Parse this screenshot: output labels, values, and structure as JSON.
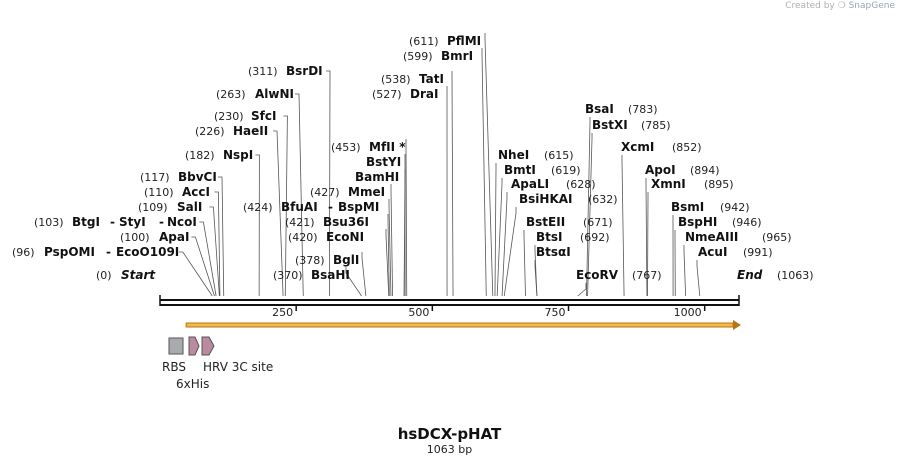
{
  "credit": {
    "prefix": "Created by",
    "brand": "SnapGene"
  },
  "plasmid": {
    "name": "hsDCX-pHAT",
    "length_label": "1063 bp",
    "length": 1063
  },
  "start_label": {
    "pos": "(0)",
    "name": "Start"
  },
  "end_label": {
    "pos": "(1063)",
    "name": "End"
  },
  "ruler": {
    "ticks": [
      250,
      500,
      750,
      1000
    ],
    "labels": [
      "250",
      "500",
      "750",
      "1000"
    ]
  },
  "features": [
    {
      "name": "RBS",
      "type": "box"
    },
    {
      "name": "6xHis",
      "type": "arrow"
    },
    {
      "name": "HRV 3C site",
      "type": "arrow"
    }
  ],
  "orf_arrow": {
    "start": 48,
    "end": 1063
  },
  "sites_left": [
    {
      "pos": "(96)",
      "name": "PspOMI",
      "pos2": null,
      "name2": "EcoO109I",
      "loc": 96
    },
    {
      "pos": "(100)",
      "name": "ApaI",
      "pos2": null,
      "name2": null,
      "loc": 100
    },
    {
      "pos": "(103)",
      "name": "BtgI",
      "pos2": null,
      "name2": "StyI",
      "name3": "NcoI",
      "loc": 103
    },
    {
      "pos": "(109)",
      "name": "SalI",
      "pos2": null,
      "name2": null,
      "loc": 109
    },
    {
      "pos": "(110)",
      "name": "AccI",
      "pos2": null,
      "name2": null,
      "loc": 110
    },
    {
      "pos": "(117)",
      "name": "BbvCI",
      "pos2": null,
      "name2": null,
      "loc": 117
    },
    {
      "pos": "(182)",
      "name": "NspI",
      "pos2": null,
      "name2": null,
      "loc": 182
    },
    {
      "pos": "(226)",
      "name": "HaeII",
      "pos2": null,
      "name2": null,
      "loc": 226
    },
    {
      "pos": "(230)",
      "name": "SfcI",
      "pos2": null,
      "name2": null,
      "loc": 230
    },
    {
      "pos": "(263)",
      "name": "AlwNI",
      "pos2": null,
      "name2": null,
      "loc": 263
    },
    {
      "pos": "(311)",
      "name": "BsrDI",
      "pos2": null,
      "name2": null,
      "loc": 311
    }
  ],
  "sites_mid": [
    {
      "pos": "(370)",
      "name": "BsaHI",
      "loc": 370
    },
    {
      "pos": "(378)",
      "name": "BglI",
      "loc": 378
    },
    {
      "pos": "(420)",
      "name": "EcoNI",
      "loc": 420
    },
    {
      "pos": "(421)",
      "name": "Bsu36I",
      "loc": 421
    },
    {
      "pos": "(424)",
      "name": "BfuAI",
      "name2": "BspMI",
      "loc": 424
    },
    {
      "pos": "(427)",
      "name": "MmeI",
      "loc": 427
    },
    {
      "pos": "",
      "name": "BamHI",
      "loc": 448
    },
    {
      "pos": "",
      "name": "BstYI",
      "loc": 450
    },
    {
      "pos": "(453)",
      "name": "MfII *",
      "loc": 453
    },
    {
      "pos": "(527)",
      "name": "DraI",
      "loc": 527
    },
    {
      "pos": "(538)",
      "name": "TatI",
      "loc": 538
    },
    {
      "pos": "(599)",
      "name": "BmrI",
      "loc": 599
    },
    {
      "pos": "(611)",
      "name": "PflMI",
      "loc": 611
    }
  ],
  "sites_right": [
    {
      "pos": "(615)",
      "name": "NheI",
      "loc": 615
    },
    {
      "pos": "(619)",
      "name": "BmtI",
      "loc": 619
    },
    {
      "pos": "(628)",
      "name": "ApaLI",
      "loc": 628
    },
    {
      "pos": "(632)",
      "name": "BsiHKAI",
      "loc": 632
    },
    {
      "pos": "(671)",
      "name": "BstEII",
      "loc": 671
    },
    {
      "pos": "(692)",
      "name": "BtsI",
      "loc": 692
    },
    {
      "pos": "",
      "name": "BtsαI",
      "loc": 692
    },
    {
      "pos": "(767)",
      "name": "EcoRV",
      "loc": 767
    },
    {
      "pos": "(783)",
      "name": "BsaI",
      "loc": 783
    },
    {
      "pos": "(785)",
      "name": "BstXI",
      "loc": 785
    },
    {
      "pos": "(852)",
      "name": "XcmI",
      "loc": 852
    },
    {
      "pos": "(894)",
      "name": "ApoI",
      "loc": 894
    },
    {
      "pos": "(895)",
      "name": "XmnI",
      "loc": 895
    },
    {
      "pos": "(942)",
      "name": "BsmI",
      "loc": 942
    },
    {
      "pos": "(946)",
      "name": "BspHI",
      "loc": 946
    },
    {
      "pos": "(965)",
      "name": "NmeAIII",
      "loc": 965
    },
    {
      "pos": "(991)",
      "name": "AcuI",
      "loc": 991
    }
  ],
  "colors": {
    "backbone": "#111111",
    "orf_fill": "#f5b945",
    "orf_stroke": "#b9741a",
    "rbs": "#a8aaad",
    "his": "#b98aa0",
    "leader": "#555555"
  }
}
